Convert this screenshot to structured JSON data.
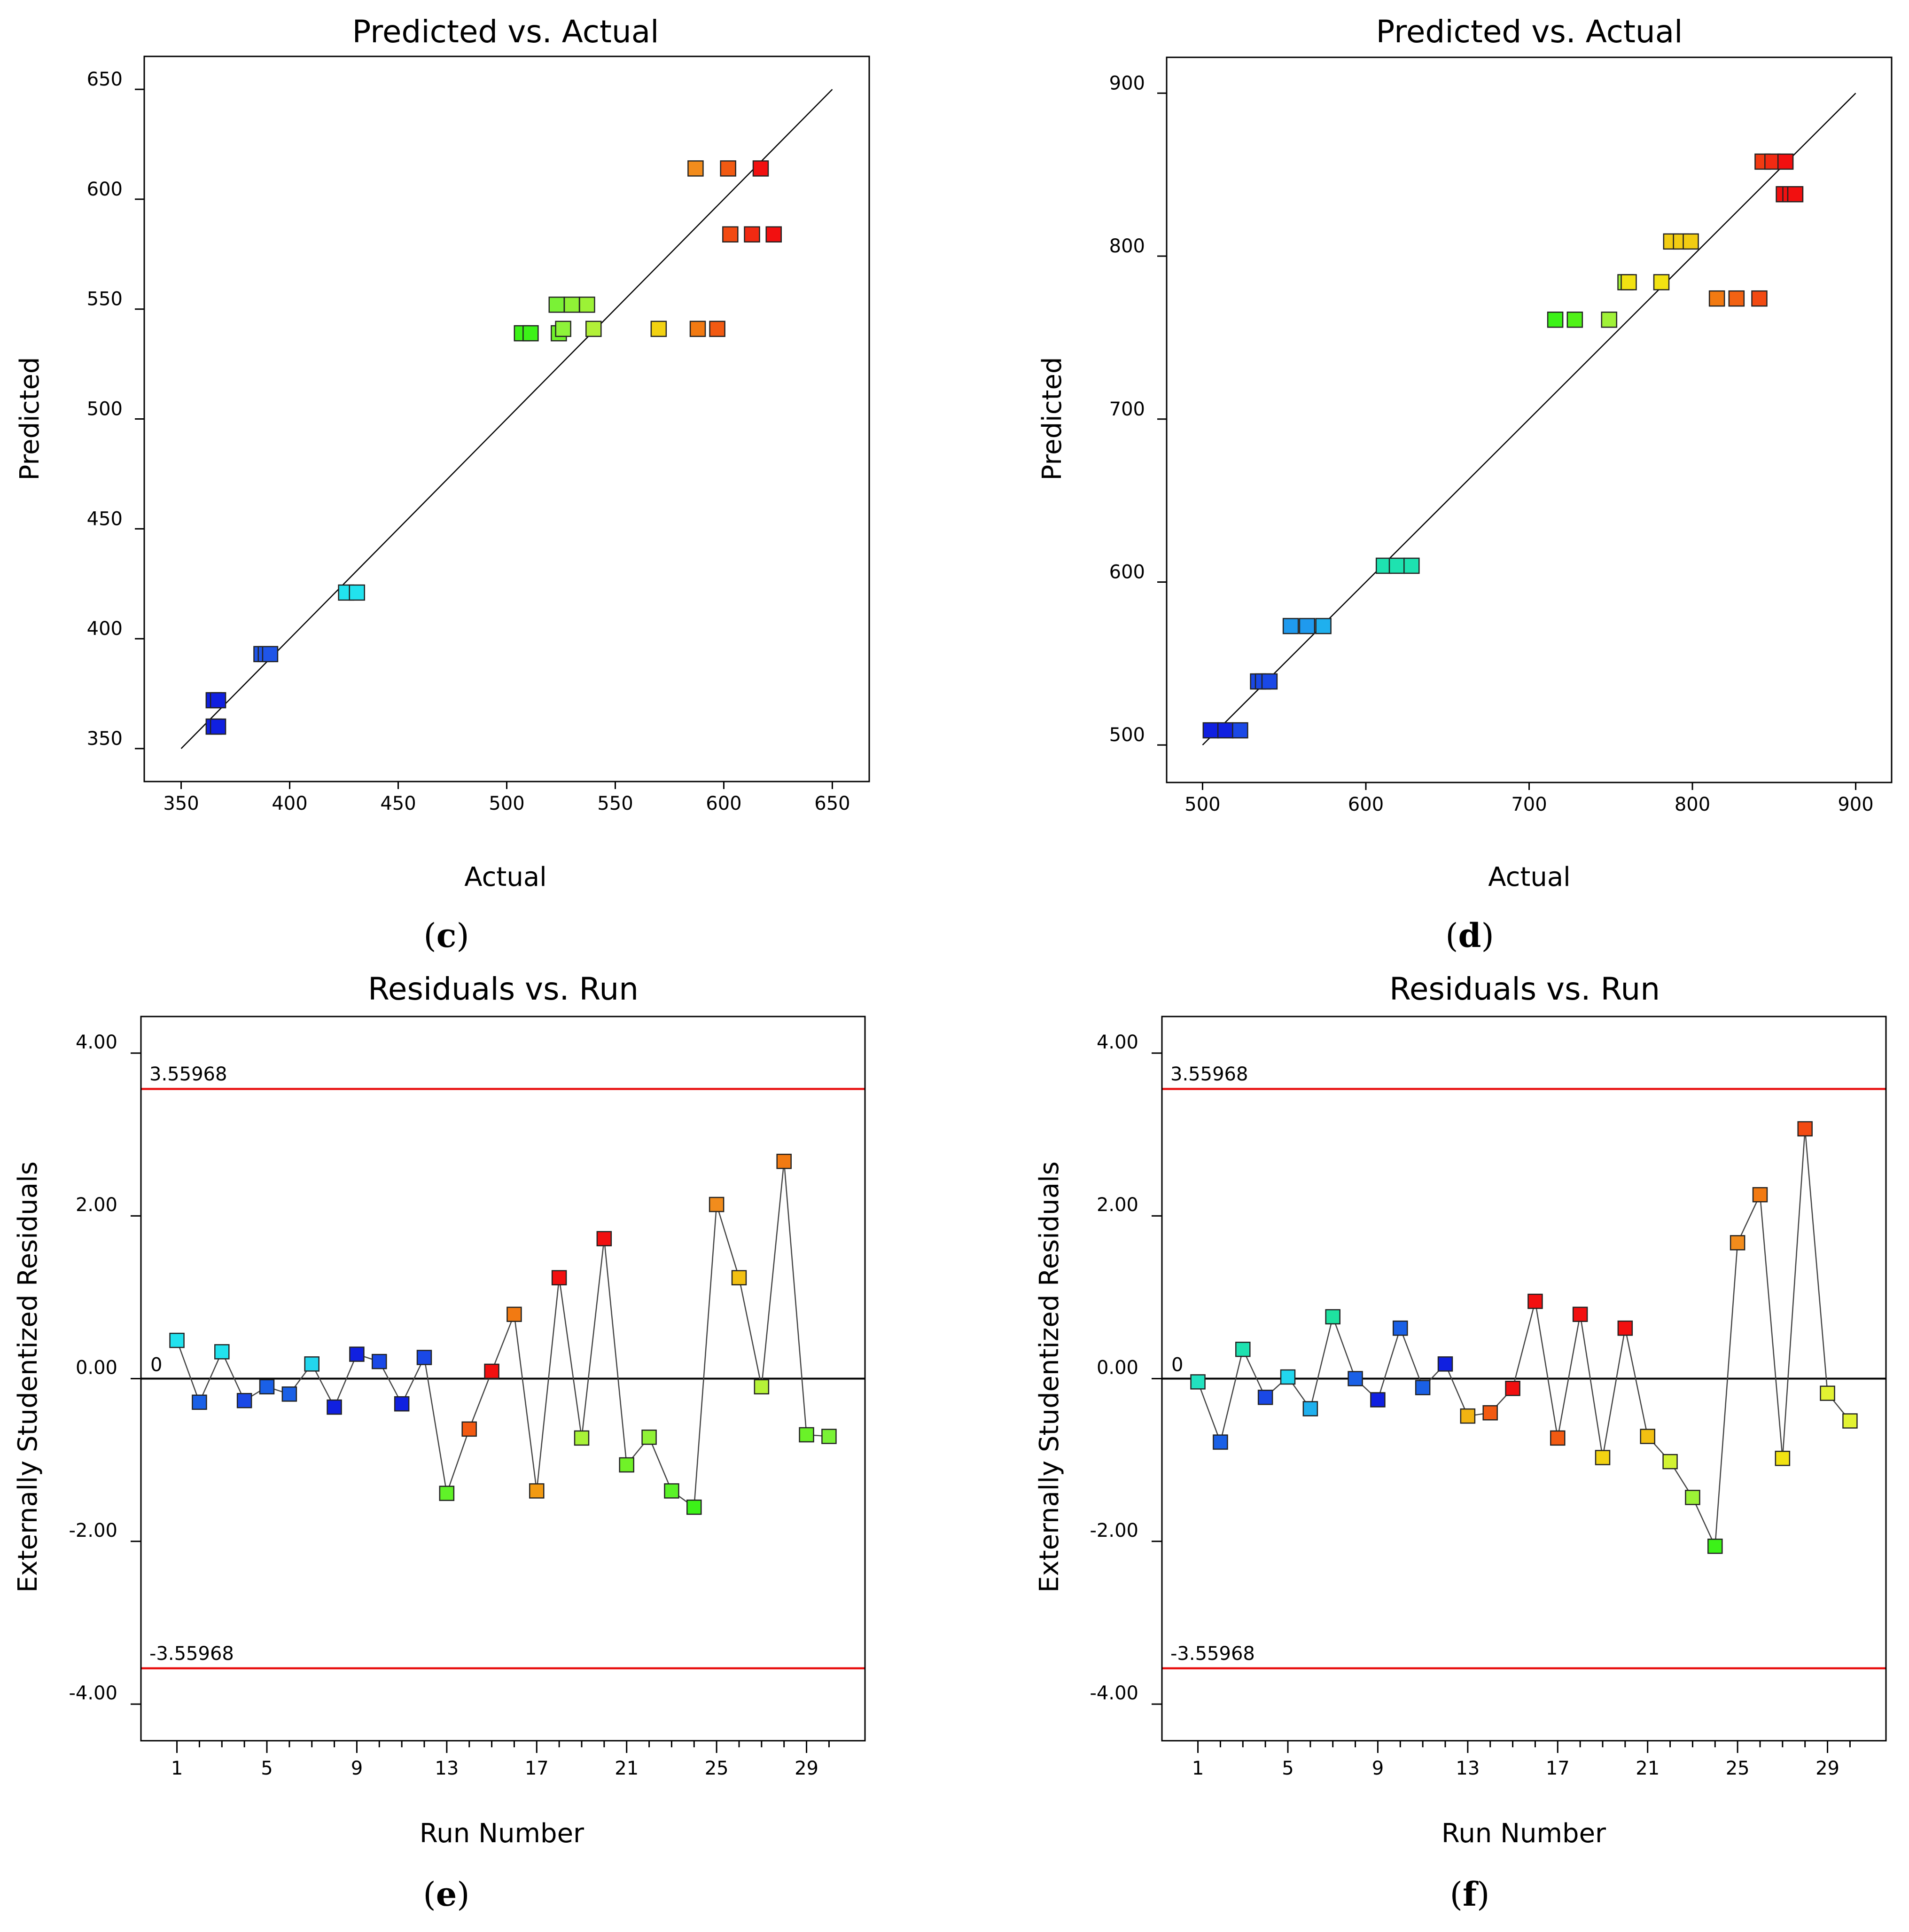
{
  "chart_data": [
    {
      "id": "c",
      "panel": "c",
      "type": "scatter",
      "title": "Predicted vs. Actual",
      "xlabel": "Actual",
      "ylabel": "Predicted",
      "xlim": [
        333,
        667
      ],
      "ylim": [
        335,
        665
      ],
      "xticks": [
        350,
        400,
        450,
        500,
        550,
        600,
        650
      ],
      "yticks": [
        350,
        400,
        450,
        500,
        550,
        600,
        650
      ],
      "reference_line": [
        [
          350,
          350
        ],
        [
          650,
          650
        ]
      ],
      "points": [
        {
          "x": 365,
          "y": 372,
          "color": "#1020e0"
        },
        {
          "x": 367,
          "y": 372,
          "color": "#1020e0"
        },
        {
          "x": 365,
          "y": 360,
          "color": "#1020e0"
        },
        {
          "x": 367,
          "y": 360,
          "color": "#1020e0"
        },
        {
          "x": 387,
          "y": 393,
          "color": "#1f55e8"
        },
        {
          "x": 389,
          "y": 393,
          "color": "#1f55e8"
        },
        {
          "x": 391,
          "y": 393,
          "color": "#1f55e8"
        },
        {
          "x": 426,
          "y": 421,
          "color": "#22e2ee"
        },
        {
          "x": 431,
          "y": 421,
          "color": "#22e2ee"
        },
        {
          "x": 507,
          "y": 539,
          "color": "#3cf218"
        },
        {
          "x": 511,
          "y": 539,
          "color": "#3cf218"
        },
        {
          "x": 524,
          "y": 539,
          "color": "#70f22a"
        },
        {
          "x": 526,
          "y": 541,
          "color": "#8ef43a"
        },
        {
          "x": 523,
          "y": 552,
          "color": "#7af236"
        },
        {
          "x": 530,
          "y": 552,
          "color": "#90f236"
        },
        {
          "x": 537,
          "y": 552,
          "color": "#9cf236"
        },
        {
          "x": 540,
          "y": 541,
          "color": "#b2f038"
        },
        {
          "x": 570,
          "y": 541,
          "color": "#f2d212"
        },
        {
          "x": 588,
          "y": 541,
          "color": "#f27a12"
        },
        {
          "x": 597,
          "y": 541,
          "color": "#f25a12"
        },
        {
          "x": 587,
          "y": 614,
          "color": "#f28c1c"
        },
        {
          "x": 602,
          "y": 614,
          "color": "#f25a12"
        },
        {
          "x": 617,
          "y": 614,
          "color": "#f21010"
        },
        {
          "x": 603,
          "y": 584,
          "color": "#f24a12"
        },
        {
          "x": 613,
          "y": 584,
          "color": "#f22a12"
        },
        {
          "x": 623,
          "y": 584,
          "color": "#f21010"
        }
      ]
    },
    {
      "id": "d",
      "panel": "d",
      "type": "scatter",
      "title": "Predicted vs. Actual",
      "xlabel": "Actual",
      "ylabel": "Predicted",
      "xlim": [
        478,
        922
      ],
      "ylim": [
        477,
        922
      ],
      "xticks": [
        500,
        600,
        700,
        800,
        900
      ],
      "yticks": [
        500,
        600,
        700,
        800,
        900
      ],
      "reference_line": [
        [
          500,
          500
        ],
        [
          900,
          900
        ]
      ],
      "points": [
        {
          "x": 505,
          "y": 509,
          "color": "#1020e0"
        },
        {
          "x": 514,
          "y": 509,
          "color": "#1020e0"
        },
        {
          "x": 523,
          "y": 509,
          "color": "#1a48e6"
        },
        {
          "x": 534,
          "y": 539,
          "color": "#1a48e6"
        },
        {
          "x": 537,
          "y": 539,
          "color": "#1a48e6"
        },
        {
          "x": 541,
          "y": 539,
          "color": "#1a48e6"
        },
        {
          "x": 554,
          "y": 573,
          "color": "#1f9aee"
        },
        {
          "x": 564,
          "y": 573,
          "color": "#1f9aee"
        },
        {
          "x": 574,
          "y": 573,
          "color": "#1fb0ee"
        },
        {
          "x": 611,
          "y": 610,
          "color": "#1ee2b0"
        },
        {
          "x": 619,
          "y": 610,
          "color": "#1ee2b0"
        },
        {
          "x": 628,
          "y": 610,
          "color": "#1ee2b0"
        },
        {
          "x": 716,
          "y": 761,
          "color": "#3cf218"
        },
        {
          "x": 728,
          "y": 761,
          "color": "#50f218"
        },
        {
          "x": 749,
          "y": 761,
          "color": "#a0f238"
        },
        {
          "x": 759,
          "y": 784,
          "color": "#a0f238"
        },
        {
          "x": 761,
          "y": 784,
          "color": "#f2e212"
        },
        {
          "x": 781,
          "y": 784,
          "color": "#f2e212"
        },
        {
          "x": 787,
          "y": 809,
          "color": "#f2cc12"
        },
        {
          "x": 793,
          "y": 809,
          "color": "#f2cc12"
        },
        {
          "x": 799,
          "y": 809,
          "color": "#f2cc12"
        },
        {
          "x": 815,
          "y": 774,
          "color": "#f27a12"
        },
        {
          "x": 827,
          "y": 774,
          "color": "#f26212"
        },
        {
          "x": 841,
          "y": 774,
          "color": "#f24a12"
        },
        {
          "x": 843,
          "y": 858,
          "color": "#f23a12"
        },
        {
          "x": 849,
          "y": 858,
          "color": "#f22a12"
        },
        {
          "x": 857,
          "y": 858,
          "color": "#f21010"
        },
        {
          "x": 856,
          "y": 838,
          "color": "#f21010"
        },
        {
          "x": 860,
          "y": 838,
          "color": "#f21010"
        },
        {
          "x": 863,
          "y": 838,
          "color": "#f21010"
        }
      ]
    },
    {
      "id": "e",
      "panel": "e",
      "type": "line",
      "title": "Residuals vs. Run",
      "xlabel": "Run Number",
      "ylabel": "Externally Studentized Residuals",
      "xlim": [
        -0.6,
        31.6
      ],
      "ylim": [
        -4.45,
        4.45
      ],
      "xticks": [
        1,
        5,
        9,
        13,
        17,
        21,
        25,
        29
      ],
      "yticks": [
        4.0,
        2.0,
        0.0,
        -2.0,
        -4.0
      ],
      "ytick_labels": [
        "4.00",
        "2.00",
        "0.00",
        "-2.00",
        "-4.00"
      ],
      "limits": {
        "upper": 3.55968,
        "lower": -3.55968,
        "upper_label": "3.55968",
        "lower_label": "-3.55968",
        "zero_label": "0",
        "color": "#e81010"
      },
      "x": [
        1,
        2,
        3,
        4,
        5,
        6,
        7,
        8,
        9,
        10,
        11,
        12,
        13,
        14,
        15,
        16,
        17,
        18,
        19,
        20,
        21,
        22,
        23,
        24,
        25,
        26,
        27,
        28,
        29,
        30
      ],
      "values": [
        0.47,
        -0.29,
        0.33,
        -0.27,
        -0.1,
        -0.19,
        0.18,
        -0.35,
        0.3,
        0.21,
        -0.31,
        0.26,
        -1.41,
        -0.62,
        0.09,
        0.79,
        -1.38,
        1.24,
        -0.73,
        1.72,
        -1.06,
        -0.72,
        -1.38,
        -1.58,
        2.14,
        1.24,
        -0.1,
        2.67,
        -0.69,
        -0.71
      ],
      "colors": [
        "#22e2ee",
        "#1a60e6",
        "#22e2ee",
        "#1a48e6",
        "#1a60e6",
        "#1a60e6",
        "#22d6ee",
        "#1020e0",
        "#1020e0",
        "#1a48e6",
        "#1020e0",
        "#1a48e6",
        "#60f228",
        "#f25a12",
        "#f21010",
        "#f27a12",
        "#f29a12",
        "#f21010",
        "#a8f238",
        "#f21010",
        "#70f228",
        "#90f236",
        "#5af228",
        "#3cf218",
        "#f28c1c",
        "#f2c012",
        "#b6f238",
        "#f27a12",
        "#6af228",
        "#7af236"
      ]
    },
    {
      "id": "f",
      "panel": "f",
      "type": "line",
      "title": "Residuals vs. Run",
      "xlabel": "Run Number",
      "ylabel": "Externally Studentized Residuals",
      "xlim": [
        -0.6,
        31.6
      ],
      "ylim": [
        -4.45,
        4.45
      ],
      "xticks": [
        1,
        5,
        9,
        13,
        17,
        21,
        25,
        29
      ],
      "yticks": [
        4.0,
        2.0,
        0.0,
        -2.0,
        -4.0
      ],
      "ytick_labels": [
        "4.00",
        "2.00",
        "0.00",
        "-2.00",
        "-4.00"
      ],
      "limits": {
        "upper": 3.55968,
        "lower": -3.55968,
        "upper_label": "3.55968",
        "lower_label": "-3.55968",
        "zero_label": "0",
        "color": "#e81010"
      },
      "x": [
        1,
        2,
        3,
        4,
        5,
        6,
        7,
        8,
        9,
        10,
        11,
        12,
        13,
        14,
        15,
        16,
        17,
        18,
        19,
        20,
        21,
        22,
        23,
        24,
        25,
        26,
        27,
        28,
        29,
        30
      ],
      "values": [
        -0.04,
        -0.78,
        0.36,
        -0.23,
        0.02,
        -0.37,
        0.76,
        0.0,
        -0.26,
        0.62,
        -0.11,
        0.18,
        -0.46,
        -0.42,
        -0.12,
        0.95,
        -0.73,
        0.79,
        -0.97,
        0.62,
        -0.71,
        -1.02,
        -1.46,
        -2.06,
        1.67,
        2.26,
        -0.98,
        3.07,
        -0.18,
        -0.52
      ],
      "colors": [
        "#22e2c0",
        "#1a60e6",
        "#1ee2b0",
        "#1a48e6",
        "#22d6ee",
        "#1fb0ee",
        "#1ee2a0",
        "#1a60e6",
        "#1020e0",
        "#1a60e6",
        "#1a60e6",
        "#1020e0",
        "#f2b412",
        "#f25a12",
        "#f21010",
        "#f21010",
        "#f25a12",
        "#f21010",
        "#f2d212",
        "#f21010",
        "#f2c012",
        "#d2f232",
        "#9cf236",
        "#3cf218",
        "#f28c1c",
        "#f27a12",
        "#f2e212",
        "#f24a12",
        "#e2f232",
        "#e2f232"
      ]
    }
  ]
}
